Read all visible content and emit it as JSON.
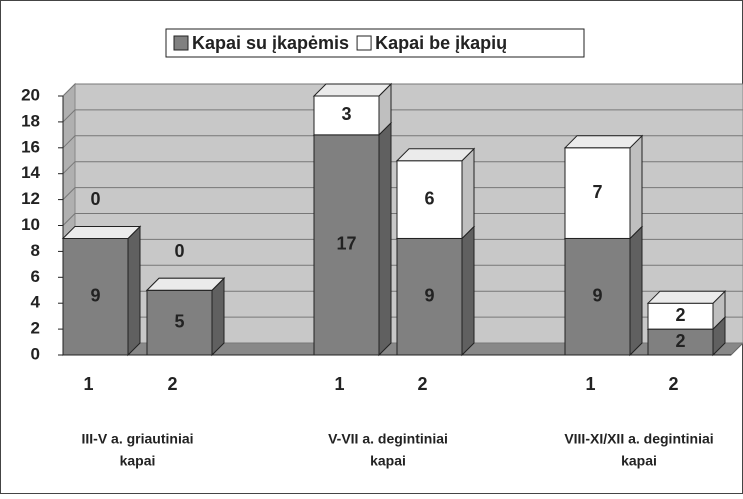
{
  "chart_data": {
    "type": "bar3d_stacked",
    "categories": [
      "1",
      "2",
      "1",
      "2",
      "1",
      "2"
    ],
    "groups": [
      {
        "label": [
          "III-V a. griautiniai",
          "kapai"
        ]
      },
      {
        "label": [
          "V-VII a. degintiniai",
          "kapai"
        ]
      },
      {
        "label": [
          "VIII-XI/XII a. degintiniai",
          "kapai"
        ]
      }
    ],
    "series": [
      {
        "name": "Kapai su įkapėmis",
        "color": "#808080",
        "values": [
          9,
          5,
          17,
          9,
          9,
          2
        ]
      },
      {
        "name": "Kapai be įkapių",
        "color": "#ffffff",
        "values": [
          0,
          0,
          3,
          6,
          7,
          2
        ]
      }
    ],
    "ylim": [
      0,
      20
    ],
    "yticks": [
      0,
      2,
      4,
      6,
      8,
      10,
      12,
      14,
      16,
      18,
      20
    ],
    "grid": true,
    "legend": "top"
  }
}
